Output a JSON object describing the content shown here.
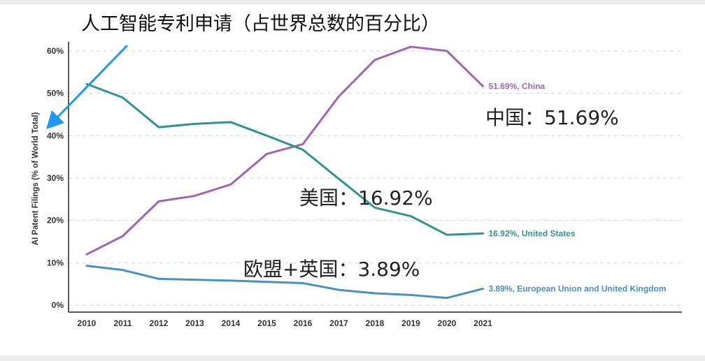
{
  "chart_data": {
    "type": "line",
    "title": "人工智能专利申请（占世界总数的百分比）",
    "ylabel": "AI Patent Filings (% of World Total)",
    "xlabel": "",
    "categories": [
      "2010",
      "2011",
      "2012",
      "2013",
      "2014",
      "2015",
      "2016",
      "2017",
      "2018",
      "2019",
      "2020",
      "2021"
    ],
    "ylim": [
      0,
      60
    ],
    "yticks": [
      0,
      10,
      20,
      30,
      40,
      50,
      60
    ],
    "ytick_labels": [
      "0%",
      "10%",
      "20%",
      "30%",
      "40%",
      "50%",
      "60%"
    ],
    "grid": "dashed",
    "series": [
      {
        "name": "China",
        "color": "#a066b4",
        "values": [
          12.0,
          16.3,
          24.5,
          25.8,
          28.5,
          35.7,
          38.0,
          49.3,
          57.9,
          61.0,
          60.0,
          51.69
        ],
        "end_label": "51.69%, China",
        "annotation": "中国：51.69%"
      },
      {
        "name": "United States",
        "color": "#34928e",
        "values": [
          52.2,
          49.0,
          42.0,
          42.8,
          43.2,
          40.0,
          36.7,
          29.8,
          23.0,
          21.0,
          16.6,
          16.92
        ],
        "end_label": "16.92%, United States",
        "annotation": "美国：16.92%"
      },
      {
        "name": "European Union and United Kingdom",
        "color": "#4a90c2",
        "values": [
          9.3,
          8.3,
          6.2,
          6.0,
          5.8,
          5.5,
          5.2,
          3.6,
          2.8,
          2.4,
          1.7,
          3.89
        ],
        "end_label": "3.89%, European Union and United Kingdom",
        "annotation": "欧盟+英国：3.89%"
      }
    ]
  },
  "arrow_color": "#2196f3"
}
